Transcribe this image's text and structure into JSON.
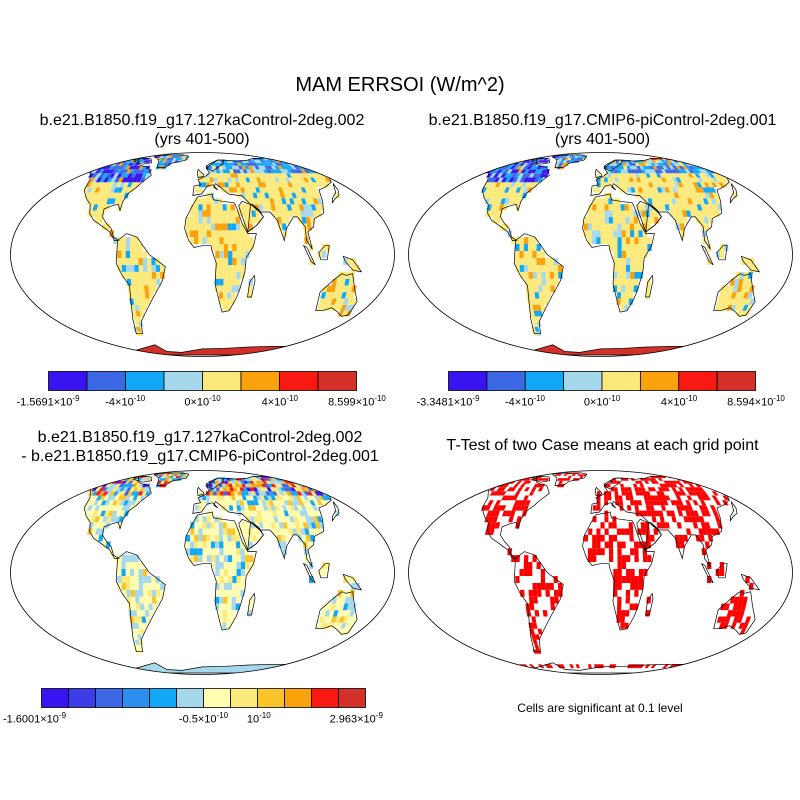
{
  "title": "MAM ERRSOI (W/m^2)",
  "panels": {
    "case1": {
      "title_line1": "b.e21.B1850.f19_g17.127kaControl-2deg.002",
      "title_line2": "(yrs 401-500)",
      "colorbar": {
        "colors": [
          "#3a14f0",
          "#3c68e6",
          "#12a8f5",
          "#a6d8ec",
          "#fce97c",
          "#f9a20b",
          "#f81a12",
          "#d3302a"
        ],
        "labels": [
          {
            "mant": "-1.5691",
            "exp": "-9"
          },
          {
            "mant": "-4",
            "exp": "-10"
          },
          {
            "mant": "0",
            "exp": "-10"
          },
          {
            "mant": "4",
            "exp": "-10"
          },
          {
            "mant": "8.599",
            "exp": "-10"
          }
        ]
      }
    },
    "case2": {
      "title_line1": "b.e21.B1850.f19_g17.CMIP6-piControl-2deg.001",
      "title_line2": "(yrs 401-500)",
      "colorbar": {
        "colors": [
          "#3a14f0",
          "#3c68e6",
          "#12a8f5",
          "#a6d8ec",
          "#fce97c",
          "#f9a20b",
          "#f81a12",
          "#d3302a"
        ],
        "labels": [
          {
            "mant": "-3.3481",
            "exp": "-9"
          },
          {
            "mant": "-4",
            "exp": "-10"
          },
          {
            "mant": "0",
            "exp": "-10"
          },
          {
            "mant": "4",
            "exp": "-10"
          },
          {
            "mant": "8.594",
            "exp": "-10"
          }
        ]
      }
    },
    "difference": {
      "title_line1": "b.e21.B1850.f19_g17.127kaControl-2deg.002",
      "title_line2": "- b.e21.B1850.f19_g17.CMIP6-piControl-2deg.001",
      "colorbar": {
        "colors": [
          "#3a14f0",
          "#3c3ce8",
          "#3c68e6",
          "#2c8ff0",
          "#12a8f5",
          "#a6d8ec",
          "#fffdb0",
          "#fce97c",
          "#f9c42a",
          "#f9a20b",
          "#f81a12",
          "#d3302a"
        ],
        "labels": [
          {
            "mant": "-1.6001",
            "exp": "-9"
          },
          {
            "mant": "-0.5",
            "exp": "-10"
          },
          {
            "mant": "10",
            "exp": "-10",
            "bare": true
          },
          {
            "mant": "2.963",
            "exp": "-9"
          }
        ]
      }
    },
    "ttest": {
      "title": "T-Test of two Case means at each grid point",
      "footnote": "Cells are significant at 0.1 level",
      "significant_color": "#ff0000"
    }
  },
  "colors": {
    "outline": "#000000",
    "antarctica_case": "#d3302a",
    "antarctica_diff": "#a6d8ec"
  }
}
